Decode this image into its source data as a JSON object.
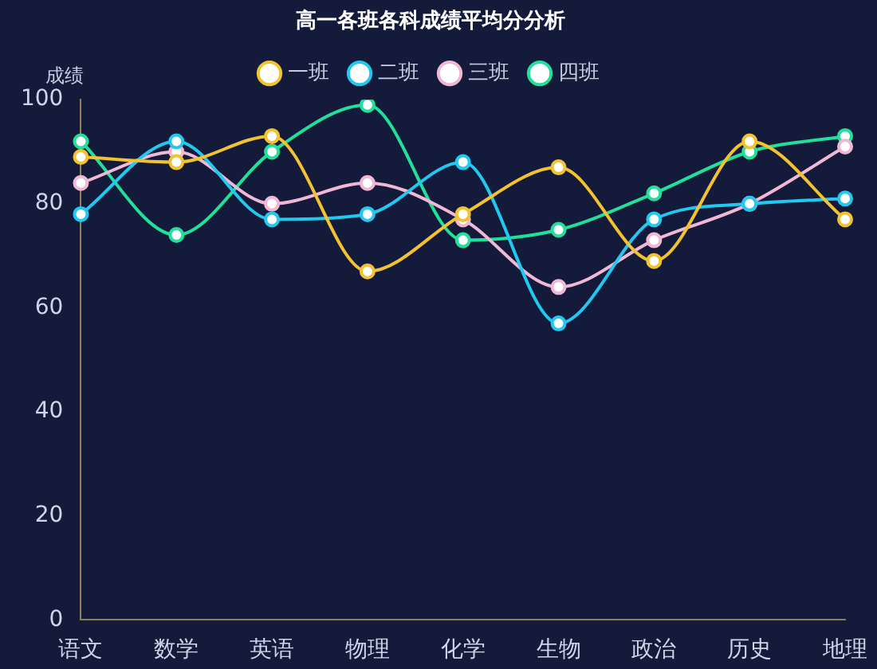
{
  "chart_data": {
    "type": "line",
    "title": "高一各班各科成绩平均分分析",
    "ylabel": "成绩",
    "categories": [
      "语文",
      "数学",
      "英语",
      "物理",
      "化学",
      "生物",
      "政治",
      "历史",
      "地理"
    ],
    "series": [
      {
        "name": "一班",
        "color": "#f2c230",
        "values": [
          89,
          88,
          93,
          67,
          78,
          87,
          69,
          92,
          77
        ]
      },
      {
        "name": "二班",
        "color": "#22c8f0",
        "values": [
          78,
          92,
          77,
          78,
          88,
          57,
          77,
          80,
          81
        ]
      },
      {
        "name": "三班",
        "color": "#f0b8d4",
        "values": [
          84,
          90,
          80,
          84,
          77,
          64,
          73,
          80,
          91
        ]
      },
      {
        "name": "四班",
        "color": "#22e09a",
        "values": [
          92,
          74,
          90,
          99,
          73,
          75,
          82,
          90,
          93
        ]
      }
    ],
    "ylim": [
      0,
      100
    ],
    "yticks": [
      0,
      20,
      40,
      60,
      80,
      100
    ],
    "grid": false,
    "legend": "top",
    "marker": "circle",
    "line_style": "solid"
  }
}
